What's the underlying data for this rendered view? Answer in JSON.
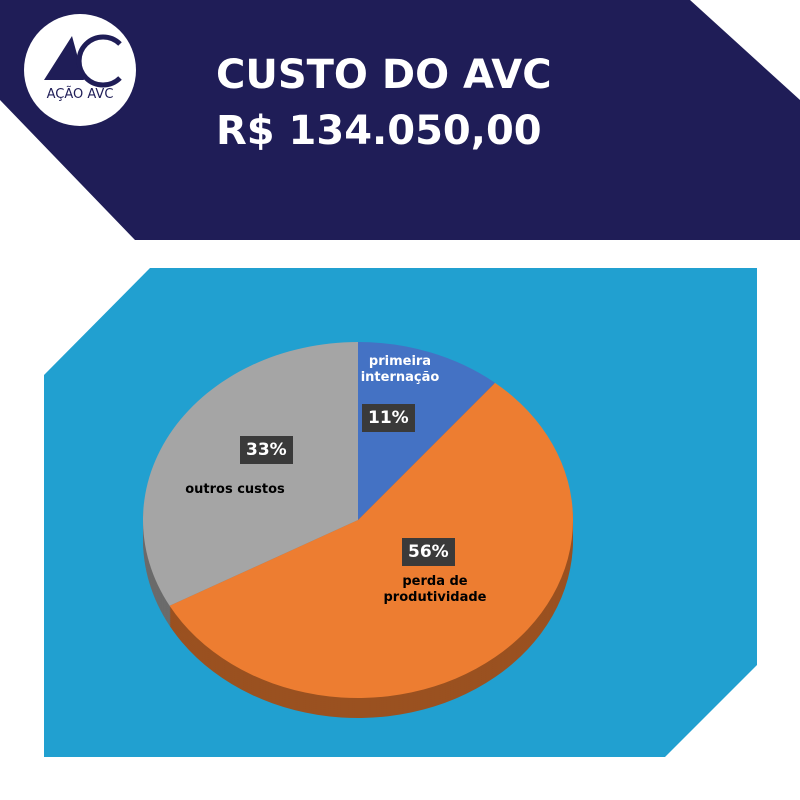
{
  "logo": {
    "text": "AÇÃO AVC"
  },
  "header": {
    "title": "CUSTO DO AVC",
    "subtitle": "R$ 134.050,00"
  },
  "chart_data": {
    "type": "pie",
    "categories": [
      "primeira internação",
      "perda de produtividade",
      "outros custos"
    ],
    "values": [
      11,
      56,
      33
    ],
    "value_labels": [
      "11%",
      "56%",
      "33%"
    ],
    "colors": [
      "#4472c4",
      "#ed7d31",
      "#a5a5a5"
    ]
  }
}
